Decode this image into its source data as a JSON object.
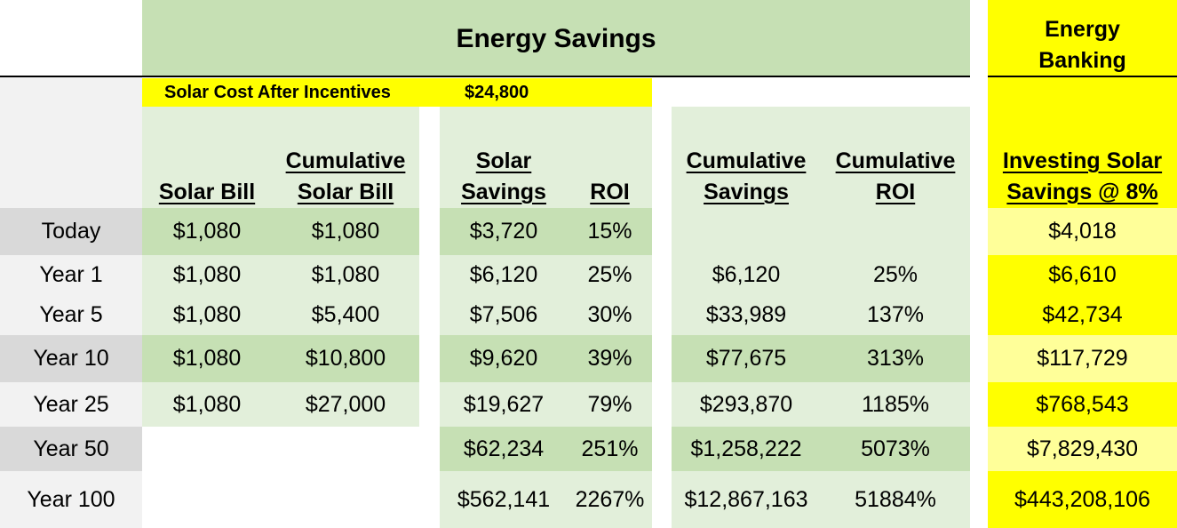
{
  "title": "Energy Savings",
  "banking_title_line1": "Energy",
  "banking_title_line2": "Banking",
  "solar_cost": {
    "label": "Solar Cost After Incentives",
    "value": "$24,800"
  },
  "headers": {
    "solar_bill": [
      "",
      "Solar Bill"
    ],
    "cumulative_solar_bill": [
      "Cumulative",
      "Solar Bill"
    ],
    "solar_savings": [
      "Solar",
      "Savings"
    ],
    "roi": [
      "",
      "ROI"
    ],
    "cumulative_savings": [
      "Cumulative",
      "Savings"
    ],
    "cumulative_roi": [
      "Cumulative",
      "ROI"
    ],
    "investing": [
      "Investing Solar",
      "Savings @ 8%"
    ]
  },
  "rows": [
    {
      "label": "Today",
      "solar_bill": "$1,080",
      "cum_bill": "$1,080",
      "savings": "$3,720",
      "roi": "15%",
      "cum_savings": "",
      "cum_roi": "",
      "investing": "$4,018"
    },
    {
      "label": "Year 1",
      "solar_bill": "$1,080",
      "cum_bill": "$1,080",
      "savings": "$6,120",
      "roi": "25%",
      "cum_savings": "$6,120",
      "cum_roi": "25%",
      "investing": "$6,610"
    },
    {
      "label": "Year 5",
      "solar_bill": "$1,080",
      "cum_bill": "$5,400",
      "savings": "$7,506",
      "roi": "30%",
      "cum_savings": "$33,989",
      "cum_roi": "137%",
      "investing": "$42,734"
    },
    {
      "label": "Year 10",
      "solar_bill": "$1,080",
      "cum_bill": "$10,800",
      "savings": "$9,620",
      "roi": "39%",
      "cum_savings": "$77,675",
      "cum_roi": "313%",
      "investing": "$117,729"
    },
    {
      "label": "Year 25",
      "solar_bill": "$1,080",
      "cum_bill": "$27,000",
      "savings": "$19,627",
      "roi": "79%",
      "cum_savings": "$293,870",
      "cum_roi": "1185%",
      "investing": "$768,543"
    },
    {
      "label": "Year 50",
      "solar_bill": "",
      "cum_bill": "",
      "savings": "$62,234",
      "roi": "251%",
      "cum_savings": "$1,258,222",
      "cum_roi": "5073%",
      "investing": "$7,829,430"
    },
    {
      "label": "Year 100",
      "solar_bill": "",
      "cum_bill": "",
      "savings": "$562,141",
      "roi": "2267%",
      "cum_savings": "$12,867,163",
      "cum_roi": "51884%",
      "investing": "$443,208,106"
    }
  ],
  "colors": {
    "green_dark": "#c6e0b4",
    "green_light": "#e2efda",
    "yellow": "#ffff00",
    "yellow_light": "#ffff99",
    "gray_dark": "#d9d9d9",
    "gray_light": "#f2f2f2"
  }
}
